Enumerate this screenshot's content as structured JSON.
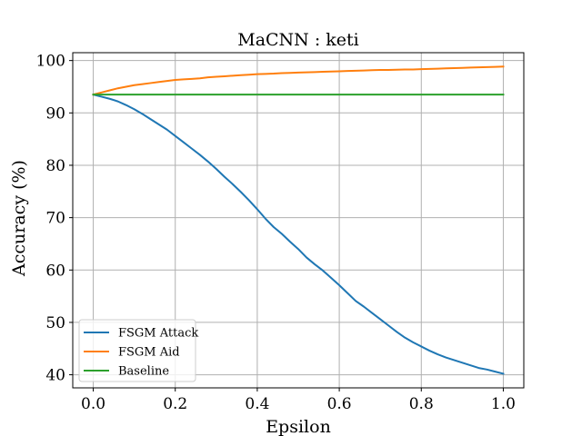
{
  "chart_data": {
    "type": "line",
    "title": "MaCNN : keti",
    "xlabel": "Epsilon",
    "ylabel": "Accuracy (%)",
    "xlim": [
      -0.05,
      1.05
    ],
    "ylim": [
      37.5,
      101.5
    ],
    "xticks": [
      0.0,
      0.2,
      0.4,
      0.6,
      0.8,
      1.0
    ],
    "xtick_labels": [
      "0.0",
      "0.2",
      "0.4",
      "0.6",
      "0.8",
      "1.0"
    ],
    "yticks": [
      40,
      50,
      60,
      70,
      80,
      90,
      100
    ],
    "ytick_labels": [
      "40",
      "50",
      "60",
      "70",
      "80",
      "90",
      "100"
    ],
    "grid": true,
    "legend_position": "lower-left",
    "x": [
      0.0,
      0.02,
      0.04,
      0.06,
      0.08,
      0.1,
      0.12,
      0.14,
      0.16,
      0.18,
      0.2,
      0.22,
      0.24,
      0.26,
      0.28,
      0.3,
      0.32,
      0.34,
      0.36,
      0.38,
      0.4,
      0.42,
      0.44,
      0.46,
      0.48,
      0.5,
      0.52,
      0.54,
      0.56,
      0.58,
      0.6,
      0.62,
      0.64,
      0.66,
      0.68,
      0.7,
      0.72,
      0.74,
      0.76,
      0.78,
      0.8,
      0.82,
      0.84,
      0.86,
      0.88,
      0.9,
      0.92,
      0.94,
      0.96,
      0.98,
      1.0
    ],
    "series": [
      {
        "name": "FSGM Attack",
        "color": "#1f77b4",
        "values": [
          93.5,
          93.1,
          92.7,
          92.2,
          91.5,
          90.7,
          89.8,
          88.8,
          87.8,
          86.8,
          85.6,
          84.4,
          83.2,
          82.0,
          80.7,
          79.3,
          77.8,
          76.4,
          74.9,
          73.3,
          71.6,
          69.8,
          68.2,
          66.9,
          65.4,
          64.0,
          62.4,
          61.1,
          59.9,
          58.5,
          57.1,
          55.6,
          54.1,
          53.0,
          51.8,
          50.6,
          49.4,
          48.2,
          47.1,
          46.2,
          45.4,
          44.6,
          43.9,
          43.3,
          42.8,
          42.3,
          41.8,
          41.3,
          41.0,
          40.6,
          40.2
        ]
      },
      {
        "name": "FSGM Aid",
        "color": "#ff7f0e",
        "values": [
          93.5,
          93.9,
          94.3,
          94.7,
          95.0,
          95.3,
          95.5,
          95.7,
          95.9,
          96.1,
          96.3,
          96.4,
          96.5,
          96.6,
          96.8,
          96.9,
          97.0,
          97.1,
          97.2,
          97.3,
          97.4,
          97.45,
          97.5,
          97.6,
          97.65,
          97.7,
          97.75,
          97.8,
          97.85,
          97.9,
          97.95,
          98.0,
          98.05,
          98.1,
          98.15,
          98.2,
          98.2,
          98.25,
          98.3,
          98.3,
          98.35,
          98.4,
          98.45,
          98.5,
          98.55,
          98.6,
          98.65,
          98.7,
          98.75,
          98.8,
          98.85
        ]
      },
      {
        "name": "Baseline",
        "color": "#2ca02c",
        "values": [
          93.5,
          93.5,
          93.5,
          93.5,
          93.5,
          93.5,
          93.5,
          93.5,
          93.5,
          93.5,
          93.5,
          93.5,
          93.5,
          93.5,
          93.5,
          93.5,
          93.5,
          93.5,
          93.5,
          93.5,
          93.5,
          93.5,
          93.5,
          93.5,
          93.5,
          93.5,
          93.5,
          93.5,
          93.5,
          93.5,
          93.5,
          93.5,
          93.5,
          93.5,
          93.5,
          93.5,
          93.5,
          93.5,
          93.5,
          93.5,
          93.5,
          93.5,
          93.5,
          93.5,
          93.5,
          93.5,
          93.5,
          93.5,
          93.5,
          93.5,
          93.5
        ]
      }
    ]
  }
}
